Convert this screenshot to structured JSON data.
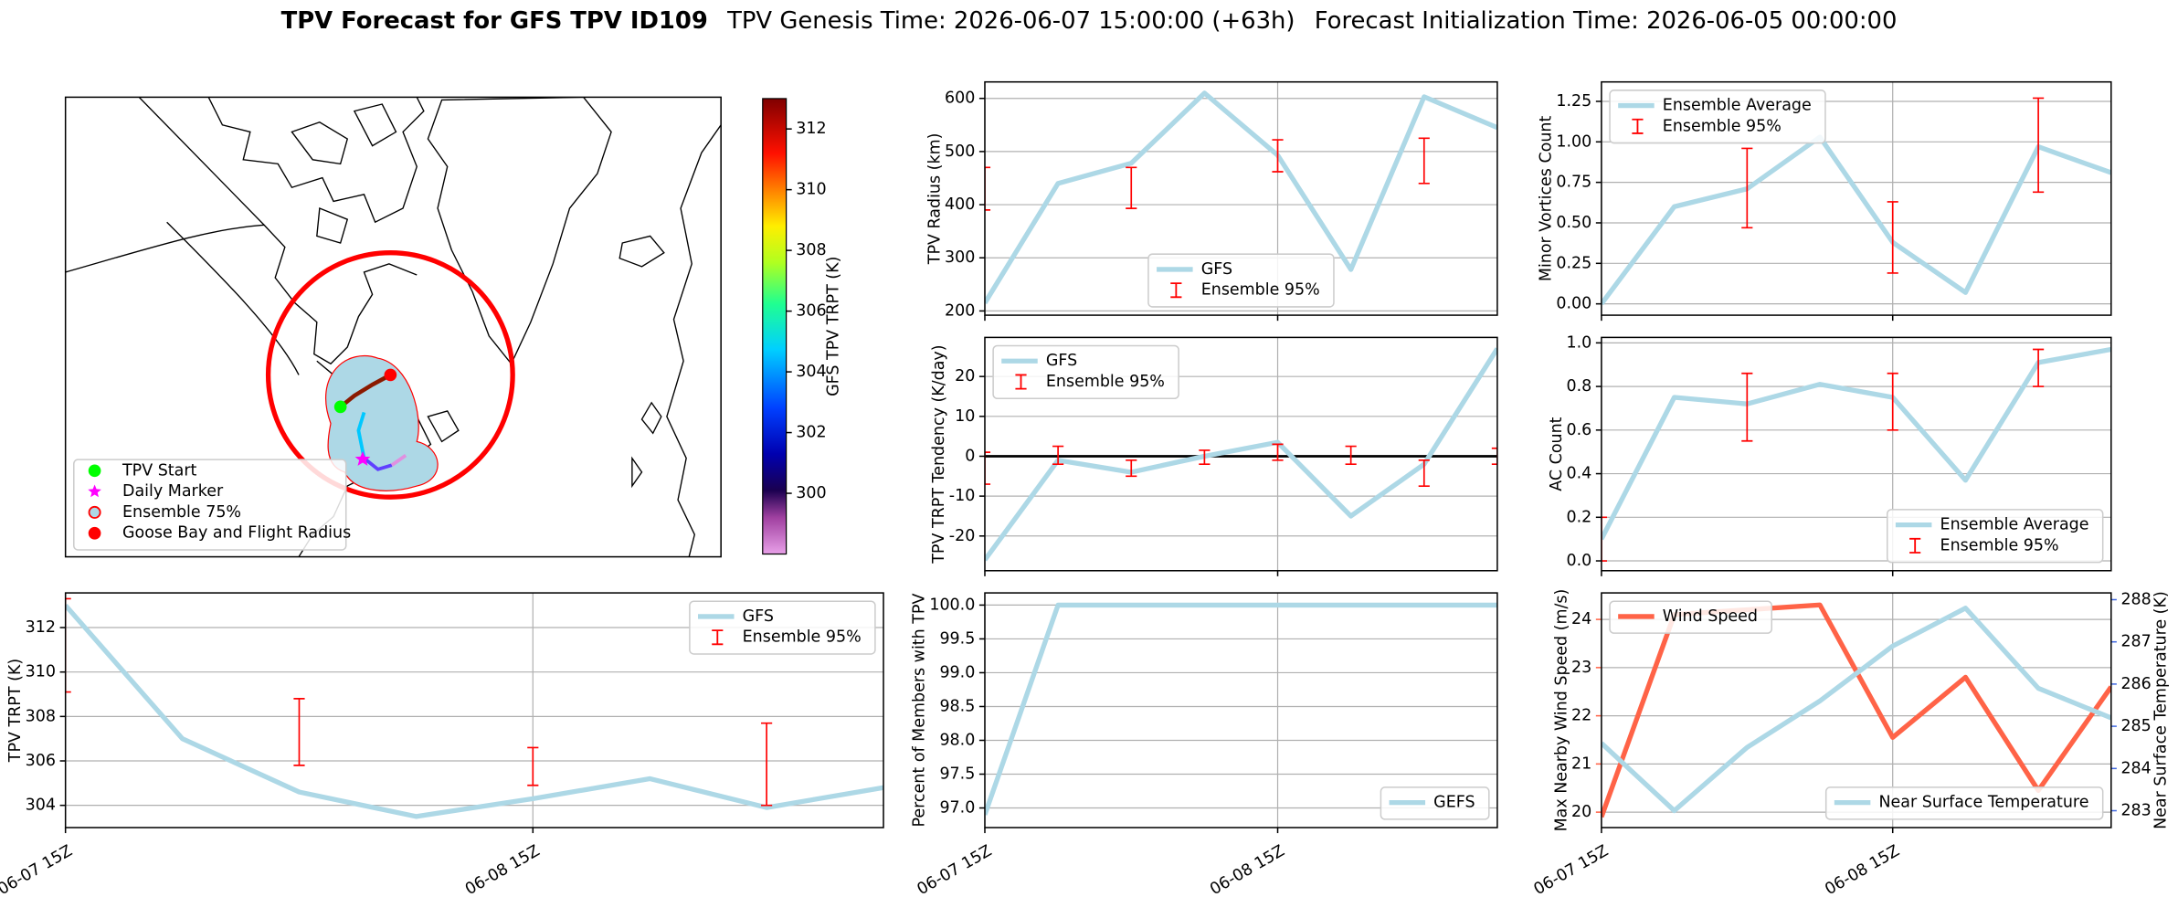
{
  "suptitle": [
    "TPV Forecast for GFS TPV ID109",
    "TPV Genesis Time: 2026-06-07 15:00:00 (+63h)",
    "Forecast Initialization Time: 2026-06-05 00:00:00"
  ],
  "chart_data": [
    {
      "type": "map",
      "colorbar": {
        "label": "GFS TPV TRPT (K)",
        "lim": [
          298,
          313
        ],
        "ticks": [
          300,
          302,
          304,
          306,
          308,
          310,
          312
        ]
      },
      "legend_entries": [
        {
          "label": "TPV Start",
          "marker": "circle",
          "color": "#00ff00"
        },
        {
          "label": "Daily Marker",
          "marker": "star",
          "color": "#ff00ff"
        },
        {
          "label": "Ensemble 75%",
          "marker": "ring",
          "color": "#ff0000"
        },
        {
          "label": "Goose Bay and Flight Radius",
          "marker": "circle",
          "color": "#ff0000"
        }
      ]
    },
    {
      "type": "line",
      "ylabel": "TPV Radius (km)",
      "sharex": 6,
      "categories": [
        null,
        null,
        null,
        null,
        null,
        null,
        null,
        null
      ],
      "ylim": [
        192,
        631
      ],
      "yticks": [
        200,
        300,
        400,
        500,
        600
      ],
      "grid": true,
      "legend": "lower center",
      "series": [
        {
          "name": "GFS",
          "color": "#add8e6",
          "values": [
            215,
            440,
            478,
            610,
            493,
            278,
            603,
            545
          ]
        },
        {
          "name": "Ensemble 95%",
          "color": "#ff0000",
          "type": "errorbar",
          "low": [
            390,
            null,
            393,
            null,
            462,
            null,
            440,
            null
          ],
          "high": [
            470,
            null,
            470,
            null,
            522,
            null,
            525,
            null
          ]
        }
      ]
    },
    {
      "type": "line",
      "ylabel": "Minor Vortices Count",
      "sharex": 7,
      "categories": [
        null,
        null,
        null,
        null,
        null,
        null,
        null,
        null
      ],
      "ylim": [
        -0.07,
        1.37
      ],
      "yticks": [
        {
          "value": 0,
          "label": "0.00"
        },
        {
          "value": 0.25,
          "label": "0.25"
        },
        {
          "value": 0.5,
          "label": "0.50"
        },
        {
          "value": 0.75,
          "label": "0.75"
        },
        {
          "value": 1,
          "label": "1.00"
        },
        {
          "value": 1.25,
          "label": "1.25"
        }
      ],
      "grid": true,
      "legend": "upper left",
      "series": [
        {
          "name": "Ensemble Average",
          "color": "#add8e6",
          "values": [
            0.0,
            0.6,
            0.71,
            1.03,
            0.38,
            0.07,
            0.97,
            0.81
          ]
        },
        {
          "name": "Ensemble 95%",
          "color": "#ff0000",
          "type": "errorbar",
          "low": [
            null,
            null,
            0.47,
            null,
            0.19,
            null,
            0.69,
            null
          ],
          "high": [
            null,
            null,
            0.96,
            null,
            0.63,
            null,
            1.27,
            null
          ]
        }
      ]
    },
    {
      "type": "line",
      "ylabel": "TPV TRPT Tendency (K/day)",
      "sharex": 6,
      "categories": [
        null,
        null,
        null,
        null,
        null,
        null,
        null,
        null
      ],
      "ylim": [
        -28.7,
        29.8
      ],
      "yticks": [
        -20,
        -10,
        0,
        10,
        20
      ],
      "grid": true,
      "legend": "upper left",
      "reference_line": 0,
      "series": [
        {
          "name": "GFS",
          "color": "#add8e6",
          "values": [
            -26,
            -1,
            -4,
            0,
            3.5,
            -15,
            -2,
            27
          ]
        },
        {
          "name": "Ensemble 95%",
          "color": "#ff0000",
          "type": "errorbar",
          "low": [
            -7,
            -2,
            -5,
            -2,
            -1,
            -2,
            -7.5,
            -2
          ],
          "high": [
            1,
            2.5,
            -1,
            1.5,
            3,
            2.5,
            -1,
            2
          ]
        }
      ]
    },
    {
      "type": "line",
      "ylabel": "AC Count",
      "sharex": 7,
      "categories": [
        null,
        null,
        null,
        null,
        null,
        null,
        null,
        null
      ],
      "ylim": [
        -0.045,
        1.025
      ],
      "yticks": [
        {
          "value": 0,
          "label": "0.0"
        },
        {
          "value": 0.2,
          "label": "0.2"
        },
        {
          "value": 0.4,
          "label": "0.4"
        },
        {
          "value": 0.6,
          "label": "0.6"
        },
        {
          "value": 0.8,
          "label": "0.8"
        },
        {
          "value": 1,
          "label": "1.0"
        }
      ],
      "grid": true,
      "legend": "lower right",
      "series": [
        {
          "name": "Ensemble Average",
          "color": "#add8e6",
          "values": [
            0.1,
            0.75,
            0.72,
            0.81,
            0.75,
            0.37,
            0.91,
            0.97
          ]
        },
        {
          "name": "Ensemble 95%",
          "color": "#ff0000",
          "type": "errorbar",
          "low": [
            0.0,
            null,
            0.55,
            null,
            0.6,
            null,
            0.8,
            null
          ],
          "high": [
            0.2,
            null,
            0.86,
            null,
            0.86,
            null,
            0.97,
            null
          ]
        }
      ]
    },
    {
      "type": "line",
      "ylabel": "TPV TRPT (K)",
      "categories": [
        "06-07 15Z",
        null,
        null,
        null,
        "06-08 15Z",
        null,
        null,
        null
      ],
      "ylim": [
        303,
        313.56
      ],
      "yticks": [
        304,
        306,
        308,
        310,
        312
      ],
      "grid": true,
      "legend": "upper right",
      "series": [
        {
          "name": "GFS",
          "color": "#add8e6",
          "values": [
            313,
            307,
            304.6,
            303.5,
            304.3,
            305.2,
            303.9,
            304.8
          ]
        },
        {
          "name": "Ensemble 95%",
          "color": "#ff0000",
          "type": "errorbar",
          "low": [
            309.1,
            null,
            305.8,
            null,
            304.9,
            null,
            304.0,
            null
          ],
          "high": [
            313.3,
            null,
            308.8,
            null,
            306.6,
            null,
            307.7,
            null
          ]
        }
      ]
    },
    {
      "type": "line",
      "ylabel": "Percent of Members with TPV",
      "categories": [
        "06-07 15Z",
        null,
        null,
        null,
        "06-08 15Z",
        null,
        null,
        null
      ],
      "ylim": [
        96.71,
        100.18
      ],
      "yticks": [
        {
          "value": 97,
          "label": "97.0"
        },
        {
          "value": 97.5,
          "label": "97.5"
        },
        {
          "value": 98,
          "label": "98.0"
        },
        {
          "value": 98.5,
          "label": "98.5"
        },
        {
          "value": 99,
          "label": "99.0"
        },
        {
          "value": 99.5,
          "label": "99.5"
        },
        {
          "value": 100,
          "label": "100.0"
        }
      ],
      "grid": true,
      "legend": "lower right",
      "series": [
        {
          "name": "GEFS",
          "color": "#add8e6",
          "values": [
            96.9,
            100,
            100,
            100,
            100,
            100,
            100,
            100
          ]
        }
      ]
    },
    {
      "type": "line",
      "ylabel": "Max Nearby Wind Speed (m/s)",
      "ylabel_color": "#ff6347",
      "y2label": "Near Surface Temperature (K)",
      "y2label_color": "#4169e1",
      "categories": [
        "06-07 15Z",
        null,
        null,
        null,
        "06-08 15Z",
        null,
        null,
        null
      ],
      "ylim": [
        19.68,
        24.55
      ],
      "yticks": [
        20,
        21,
        22,
        23,
        24
      ],
      "y2lim": [
        282.6,
        288.16
      ],
      "y2ticks": [
        283,
        284,
        285,
        286,
        287,
        288
      ],
      "grid": true,
      "legend": "upper left",
      "legend2": "lower right",
      "series": [
        {
          "name": "Wind Speed",
          "color": "#ff6347",
          "values": [
            19.9,
            24.1,
            24.2,
            24.3,
            21.55,
            22.8,
            20.45,
            22.6
          ]
        },
        {
          "name": "Near Surface Temperature",
          "color": "#add8e6",
          "axis": "y2",
          "values": [
            284.6,
            283.0,
            284.5,
            285.6,
            286.9,
            287.8,
            285.9,
            285.2
          ]
        }
      ]
    }
  ]
}
